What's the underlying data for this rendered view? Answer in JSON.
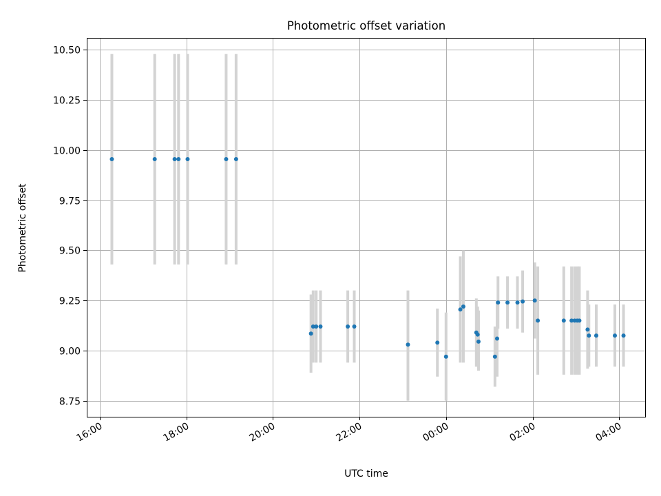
{
  "chart_data": {
    "type": "scatter",
    "title": "Photometric offset variation",
    "xlabel": "UTC time",
    "ylabel": "Photometric offset",
    "x_unit": "hours (UTC, continuing past midnight)",
    "xlim": [
      15.7,
      28.6
    ],
    "ylim": [
      8.67,
      10.56
    ],
    "grid": true,
    "x_ticks": [
      {
        "value": 16,
        "label": "16:00"
      },
      {
        "value": 18,
        "label": "18:00"
      },
      {
        "value": 20,
        "label": "20:00"
      },
      {
        "value": 22,
        "label": "22:00"
      },
      {
        "value": 24,
        "label": "00:00"
      },
      {
        "value": 26,
        "label": "02:00"
      },
      {
        "value": 28,
        "label": "04:00"
      }
    ],
    "y_ticks": [
      {
        "value": 8.75,
        "label": "8.75"
      },
      {
        "value": 9.0,
        "label": "9.00"
      },
      {
        "value": 9.25,
        "label": "9.25"
      },
      {
        "value": 9.5,
        "label": "9.50"
      },
      {
        "value": 9.75,
        "label": "9.75"
      },
      {
        "value": 10.0,
        "label": "10.00"
      },
      {
        "value": 10.25,
        "label": "10.25"
      },
      {
        "value": 10.5,
        "label": "10.50"
      }
    ],
    "series": [
      {
        "marker_color": "#1f77b4",
        "errorbar_color": "#d3d3d3",
        "points": [
          {
            "x": 16.28,
            "y": 9.955,
            "ylo": 9.43,
            "yhi": 10.48
          },
          {
            "x": 17.27,
            "y": 9.955,
            "ylo": 9.43,
            "yhi": 10.48
          },
          {
            "x": 17.73,
            "y": 9.955,
            "ylo": 9.43,
            "yhi": 10.48
          },
          {
            "x": 17.82,
            "y": 9.955,
            "ylo": 9.43,
            "yhi": 10.48
          },
          {
            "x": 18.03,
            "y": 9.955,
            "ylo": 9.43,
            "yhi": 10.48
          },
          {
            "x": 18.92,
            "y": 9.955,
            "ylo": 9.43,
            "yhi": 10.48
          },
          {
            "x": 19.15,
            "y": 9.955,
            "ylo": 9.43,
            "yhi": 10.48
          },
          {
            "x": 20.88,
            "y": 9.085,
            "ylo": 8.89,
            "yhi": 9.28
          },
          {
            "x": 20.93,
            "y": 9.12,
            "ylo": 8.94,
            "yhi": 9.3
          },
          {
            "x": 21.0,
            "y": 9.12,
            "ylo": 8.94,
            "yhi": 9.3
          },
          {
            "x": 21.1,
            "y": 9.12,
            "ylo": 8.94,
            "yhi": 9.3
          },
          {
            "x": 21.73,
            "y": 9.12,
            "ylo": 8.94,
            "yhi": 9.3
          },
          {
            "x": 21.88,
            "y": 9.12,
            "ylo": 8.94,
            "yhi": 9.3
          },
          {
            "x": 23.12,
            "y": 9.03,
            "ylo": 8.75,
            "yhi": 9.3
          },
          {
            "x": 23.8,
            "y": 9.04,
            "ylo": 8.87,
            "yhi": 9.21
          },
          {
            "x": 24.0,
            "y": 8.97,
            "ylo": 8.75,
            "yhi": 9.19
          },
          {
            "x": 24.33,
            "y": 9.205,
            "ylo": 8.94,
            "yhi": 9.47
          },
          {
            "x": 24.4,
            "y": 9.22,
            "ylo": 8.94,
            "yhi": 9.5
          },
          {
            "x": 24.7,
            "y": 9.09,
            "ylo": 8.92,
            "yhi": 9.26
          },
          {
            "x": 24.73,
            "y": 9.08,
            "ylo": 8.92,
            "yhi": 9.22
          },
          {
            "x": 24.75,
            "y": 9.045,
            "ylo": 8.9,
            "yhi": 9.2
          },
          {
            "x": 25.13,
            "y": 8.97,
            "ylo": 8.82,
            "yhi": 9.12
          },
          {
            "x": 25.18,
            "y": 9.06,
            "ylo": 8.87,
            "yhi": 9.25
          },
          {
            "x": 25.2,
            "y": 9.24,
            "ylo": 9.11,
            "yhi": 9.37
          },
          {
            "x": 25.42,
            "y": 9.24,
            "ylo": 9.11,
            "yhi": 9.37
          },
          {
            "x": 25.65,
            "y": 9.24,
            "ylo": 9.11,
            "yhi": 9.37
          },
          {
            "x": 25.77,
            "y": 9.245,
            "ylo": 9.09,
            "yhi": 9.4
          },
          {
            "x": 26.05,
            "y": 9.25,
            "ylo": 9.06,
            "yhi": 9.44
          },
          {
            "x": 26.12,
            "y": 9.15,
            "ylo": 8.88,
            "yhi": 9.42
          },
          {
            "x": 26.72,
            "y": 9.15,
            "ylo": 8.88,
            "yhi": 9.42
          },
          {
            "x": 26.9,
            "y": 9.15,
            "ylo": 8.88,
            "yhi": 9.42
          },
          {
            "x": 26.97,
            "y": 9.15,
            "ylo": 8.88,
            "yhi": 9.42
          },
          {
            "x": 27.03,
            "y": 9.15,
            "ylo": 8.88,
            "yhi": 9.42
          },
          {
            "x": 27.08,
            "y": 9.15,
            "ylo": 8.88,
            "yhi": 9.42
          },
          {
            "x": 27.27,
            "y": 9.105,
            "ylo": 8.91,
            "yhi": 9.3
          },
          {
            "x": 27.3,
            "y": 9.075,
            "ylo": 8.92,
            "yhi": 9.23
          },
          {
            "x": 27.47,
            "y": 9.075,
            "ylo": 8.92,
            "yhi": 9.23
          },
          {
            "x": 27.9,
            "y": 9.075,
            "ylo": 8.92,
            "yhi": 9.23
          },
          {
            "x": 28.1,
            "y": 9.075,
            "ylo": 8.92,
            "yhi": 9.23
          }
        ]
      }
    ]
  }
}
